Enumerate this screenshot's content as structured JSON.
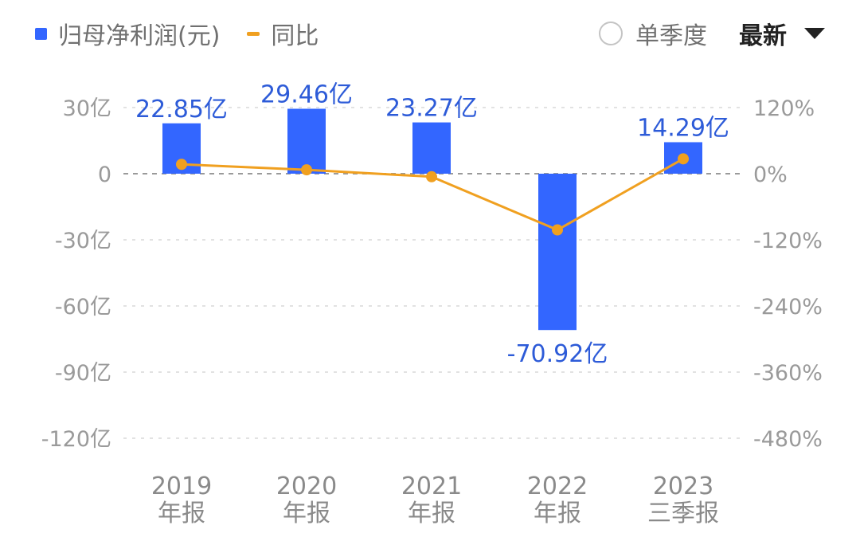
{
  "legend": {
    "bar_label": "归母净利润(元)",
    "line_label": "同比",
    "bar_color": "#3366FF",
    "line_color": "#F0A020"
  },
  "controls": {
    "single_quarter_label": "单季度",
    "single_quarter_checked": false,
    "period_select_value": "最新"
  },
  "chart_data": {
    "type": "bar",
    "categories": [
      [
        "2019",
        "年报"
      ],
      [
        "2020",
        "年报"
      ],
      [
        "2021",
        "年报"
      ],
      [
        "2022",
        "年报"
      ],
      [
        "2023",
        "三季报"
      ]
    ],
    "series": [
      {
        "name": "归母净利润(元)",
        "type": "bar",
        "axis": "left",
        "unit": "亿",
        "values": [
          22.85,
          29.46,
          23.27,
          -70.92,
          14.29
        ],
        "labels": [
          "22.85亿",
          "29.46亿",
          "23.27亿",
          "-70.92亿",
          "14.29亿"
        ]
      },
      {
        "name": "同比",
        "type": "line",
        "axis": "right",
        "unit": "%",
        "values": [
          17,
          7,
          -5.5,
          -102,
          27
        ]
      }
    ],
    "y_left": {
      "ylim": [
        -120,
        30
      ],
      "ticks": [
        30,
        0,
        -30,
        -60,
        -90,
        -120
      ],
      "tick_labels": [
        "30亿",
        "0",
        "-30亿",
        "-60亿",
        "-90亿",
        "-120亿"
      ]
    },
    "y_right": {
      "ylim": [
        -480,
        120
      ],
      "ticks": [
        120,
        0,
        -120,
        -240,
        -360,
        -480
      ],
      "tick_labels": [
        "120%",
        "0%",
        "-120%",
        "-240%",
        "-360%",
        "-480%"
      ]
    },
    "grid": true,
    "legend_position": "top-left"
  }
}
